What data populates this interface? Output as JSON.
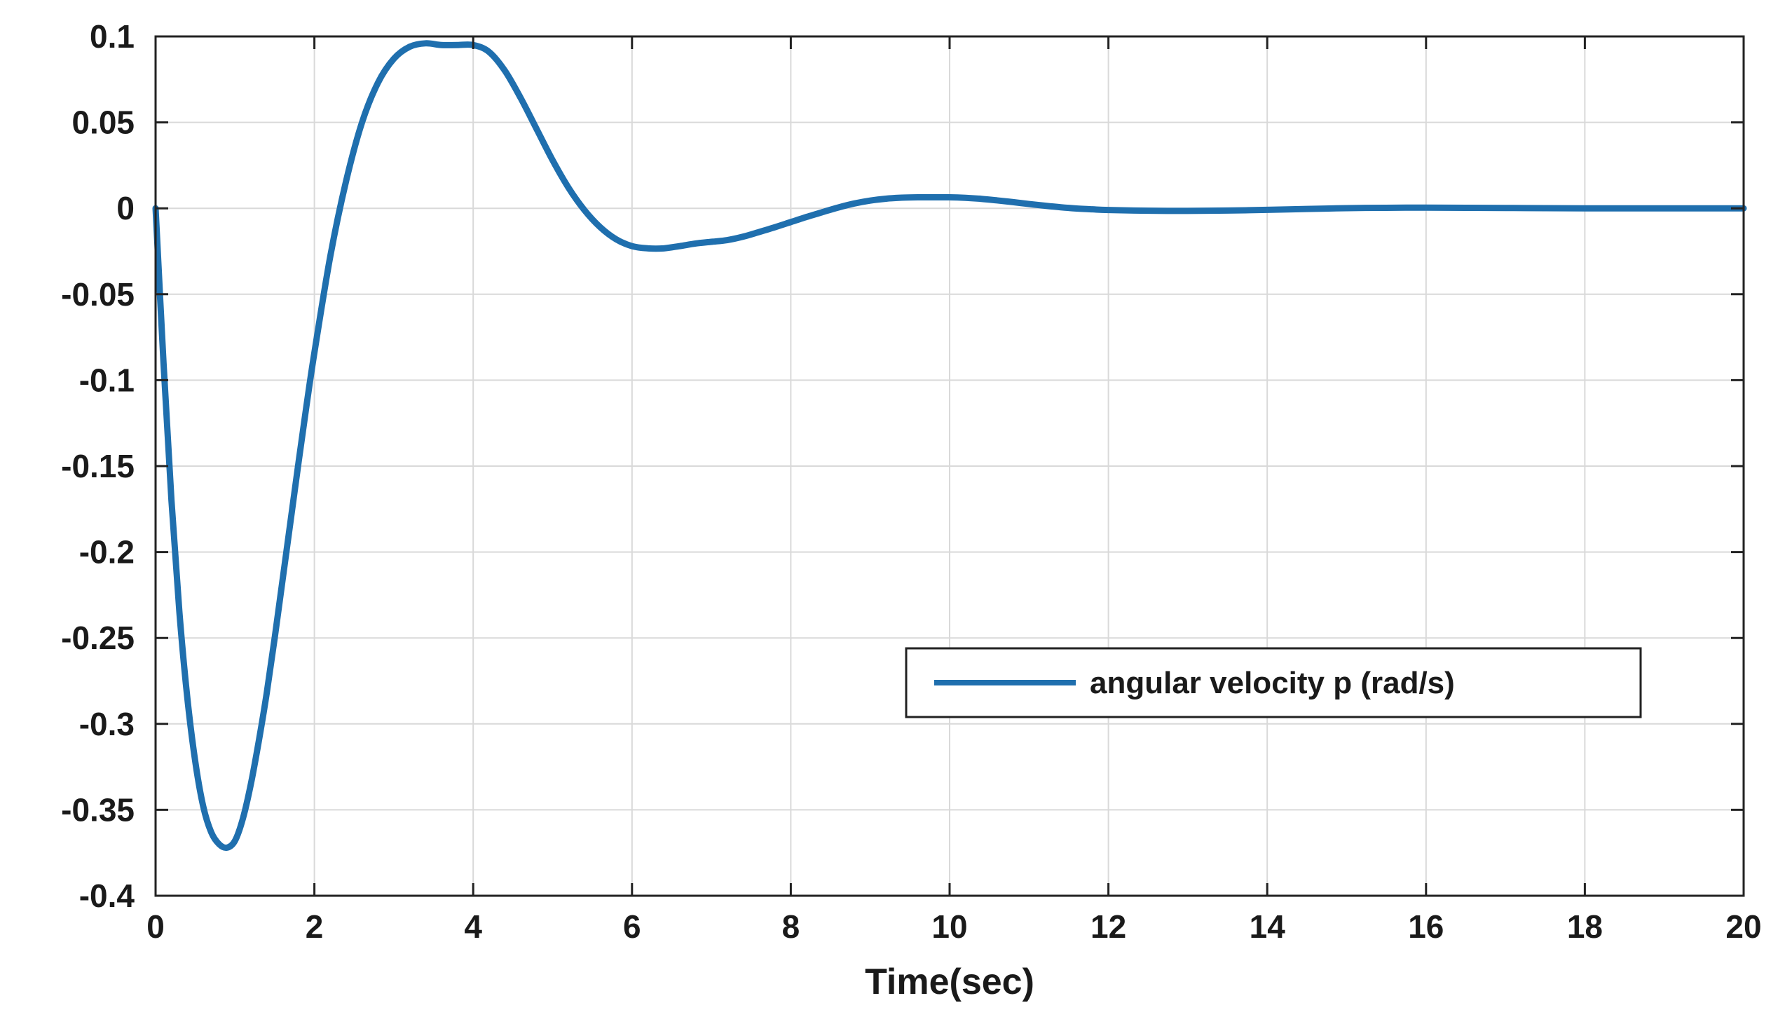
{
  "chart_data": {
    "type": "line",
    "title": "",
    "xlabel": "Time(sec)",
    "ylabel": "",
    "xlim": [
      0,
      20
    ],
    "ylim": [
      -0.4,
      0.1
    ],
    "x_ticks": [
      0,
      2,
      4,
      6,
      8,
      10,
      12,
      14,
      16,
      18,
      20
    ],
    "x_tick_labels": [
      "0",
      "2",
      "4",
      "6",
      "8",
      "10",
      "12",
      "14",
      "16",
      "18",
      "20"
    ],
    "y_ticks": [
      0.1,
      0.05,
      0,
      -0.05,
      -0.1,
      -0.15,
      -0.2,
      -0.25,
      -0.3,
      -0.35,
      -0.4
    ],
    "y_tick_labels": [
      "0.1",
      "0.05",
      "0",
      "-0.05",
      "-0.1",
      "-0.15",
      "-0.2",
      "-0.25",
      "-0.3",
      "-0.35",
      "-0.4"
    ],
    "grid": true,
    "legend_position": "right",
    "series": [
      {
        "name": "angular velocity p (rad/s)",
        "color": "#1f6fae",
        "x": [
          0,
          0.1,
          0.2,
          0.3,
          0.4,
          0.5,
          0.6,
          0.7,
          0.8,
          0.9,
          1.0,
          1.1,
          1.2,
          1.3,
          1.4,
          1.5,
          1.6,
          1.7,
          1.8,
          1.9,
          2.0,
          2.2,
          2.4,
          2.6,
          2.8,
          3.0,
          3.2,
          3.4,
          3.6,
          3.8,
          4.0,
          4.2,
          4.4,
          4.6,
          4.8,
          5.0,
          5.2,
          5.4,
          5.6,
          5.8,
          6.0,
          6.2,
          6.4,
          6.6,
          6.8,
          7.0,
          7.2,
          7.4,
          7.6,
          7.8,
          8.0,
          8.2,
          8.4,
          8.6,
          8.8,
          9.0,
          9.2,
          9.4,
          9.6,
          9.8,
          10.0,
          10.2,
          10.4,
          10.6,
          10.8,
          11.0,
          11.2,
          11.4,
          11.6,
          11.8,
          12.0,
          12.5,
          13.0,
          13.5,
          14.0,
          14.5,
          15.0,
          15.5,
          16.0,
          16.5,
          17.0,
          17.5,
          18.0,
          18.5,
          19.0,
          19.5,
          20.0
        ],
        "y": [
          0,
          -0.09,
          -0.17,
          -0.235,
          -0.285,
          -0.322,
          -0.348,
          -0.363,
          -0.37,
          -0.372,
          -0.368,
          -0.355,
          -0.335,
          -0.31,
          -0.282,
          -0.25,
          -0.216,
          -0.182,
          -0.148,
          -0.115,
          -0.084,
          -0.028,
          0.016,
          0.05,
          0.073,
          0.087,
          0.094,
          0.096,
          0.095,
          0.095,
          0.095,
          0.091,
          0.08,
          0.064,
          0.046,
          0.028,
          0.012,
          -0.001,
          -0.011,
          -0.018,
          -0.022,
          -0.0233,
          -0.0233,
          -0.022,
          -0.0205,
          -0.0195,
          -0.0185,
          -0.0165,
          -0.0138,
          -0.011,
          -0.008,
          -0.005,
          -0.0022,
          0.0005,
          0.0028,
          0.0045,
          0.0056,
          0.0062,
          0.0064,
          0.0064,
          0.0064,
          0.0061,
          0.0055,
          0.0046,
          0.0036,
          0.0025,
          0.0015,
          0.0006,
          -0.0001,
          -0.0006,
          -0.001,
          -0.0014,
          -0.0015,
          -0.0013,
          -0.0009,
          -0.0004,
          0.0001,
          0.0003,
          0.0004,
          0.0003,
          0.0002,
          0.0001,
          0,
          0,
          0,
          0,
          0
        ]
      }
    ]
  }
}
